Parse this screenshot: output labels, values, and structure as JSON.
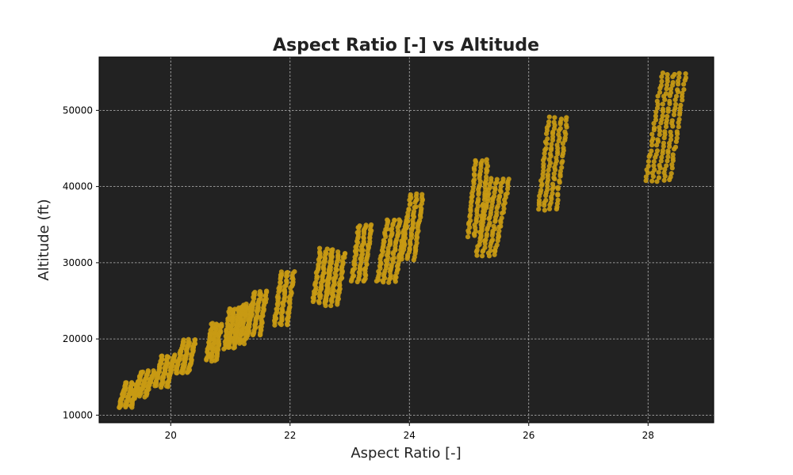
{
  "chart_data": {
    "type": "scatter",
    "title": "Aspect Ratio [-] vs Altitude",
    "xlabel": "Aspect Ratio [-]",
    "ylabel": "Altitude (ft)",
    "xlim": [
      18.8,
      29.1
    ],
    "ylim": [
      9000,
      57000
    ],
    "x_ticks": [
      20,
      22,
      24,
      26,
      28
    ],
    "y_ticks": [
      10000,
      20000,
      30000,
      40000,
      50000
    ],
    "grid": true,
    "legend": "none",
    "colors": {
      "plot_background": "#222222",
      "marker": "#C89A14",
      "grid": "#bbbbbb"
    },
    "clusters": [
      {
        "x_bottom": 19.2,
        "x_top": 19.4,
        "y_min": 11000,
        "y_max": 14400,
        "bands": [
          19.2,
          19.3,
          19.4
        ]
      },
      {
        "x_bottom": 19.45,
        "x_top": 19.7,
        "y_min": 12500,
        "y_max": 15800,
        "bands": [
          19.45,
          19.55,
          19.65
        ]
      },
      {
        "x_bottom": 19.8,
        "x_top": 20.0,
        "y_min": 13800,
        "y_max": 17800,
        "bands": [
          19.8,
          19.9,
          20.0
        ]
      },
      {
        "x_bottom": 20.15,
        "x_top": 20.35,
        "y_min": 15500,
        "y_max": 19800,
        "bands": [
          20.15,
          20.25,
          20.35
        ]
      },
      {
        "x_bottom": 20.65,
        "x_top": 20.8,
        "y_min": 17200,
        "y_max": 22000,
        "bands": [
          20.65,
          20.72,
          20.8
        ]
      },
      {
        "x_bottom": 20.95,
        "x_top": 21.1,
        "y_min": 18800,
        "y_max": 24000,
        "bands": [
          20.95,
          21.02,
          21.1
        ]
      },
      {
        "x_bottom": 21.1,
        "x_top": 21.3,
        "y_min": 19500,
        "y_max": 24500,
        "bands": [
          21.15,
          21.22,
          21.3
        ]
      },
      {
        "x_bottom": 21.35,
        "x_top": 21.55,
        "y_min": 20500,
        "y_max": 26200,
        "bands": [
          21.35,
          21.45,
          21.55
        ]
      },
      {
        "x_bottom": 21.8,
        "x_top": 22.0,
        "y_min": 21800,
        "y_max": 28800,
        "bands": [
          21.8,
          21.9,
          22.0
        ]
      },
      {
        "x_bottom": 22.45,
        "x_top": 22.65,
        "y_min": 24800,
        "y_max": 31800,
        "bands": [
          22.45,
          22.55,
          22.65
        ]
      },
      {
        "x_bottom": 22.65,
        "x_top": 22.85,
        "y_min": 24500,
        "y_max": 31300,
        "bands": [
          22.65,
          22.75,
          22.85
        ]
      },
      {
        "x_bottom": 23.1,
        "x_top": 23.3,
        "y_min": 27500,
        "y_max": 35000,
        "bands": [
          23.1,
          23.2,
          23.3
        ]
      },
      {
        "x_bottom": 23.55,
        "x_top": 23.85,
        "y_min": 27500,
        "y_max": 35700,
        "bands": [
          23.55,
          23.65,
          23.75,
          23.85
        ]
      },
      {
        "x_bottom": 23.95,
        "x_top": 24.2,
        "y_min": 30500,
        "y_max": 39000,
        "bands": [
          23.95,
          24.05,
          24.15
        ]
      },
      {
        "x_bottom": 25.05,
        "x_top": 25.25,
        "y_min": 33500,
        "y_max": 43500,
        "bands": [
          25.05,
          25.15,
          25.25
        ]
      },
      {
        "x_bottom": 25.2,
        "x_top": 25.6,
        "y_min": 31000,
        "y_max": 41000,
        "bands": [
          25.25,
          25.35,
          25.45,
          25.55
        ]
      },
      {
        "x_bottom": 26.25,
        "x_top": 26.55,
        "y_min": 37000,
        "y_max": 49000,
        "bands": [
          26.25,
          26.35,
          26.45,
          26.55
        ]
      },
      {
        "x_bottom": 28.1,
        "x_top": 28.55,
        "y_min": 40800,
        "y_max": 54800,
        "bands": [
          28.1,
          28.2,
          28.3,
          28.4,
          28.5
        ]
      }
    ]
  }
}
